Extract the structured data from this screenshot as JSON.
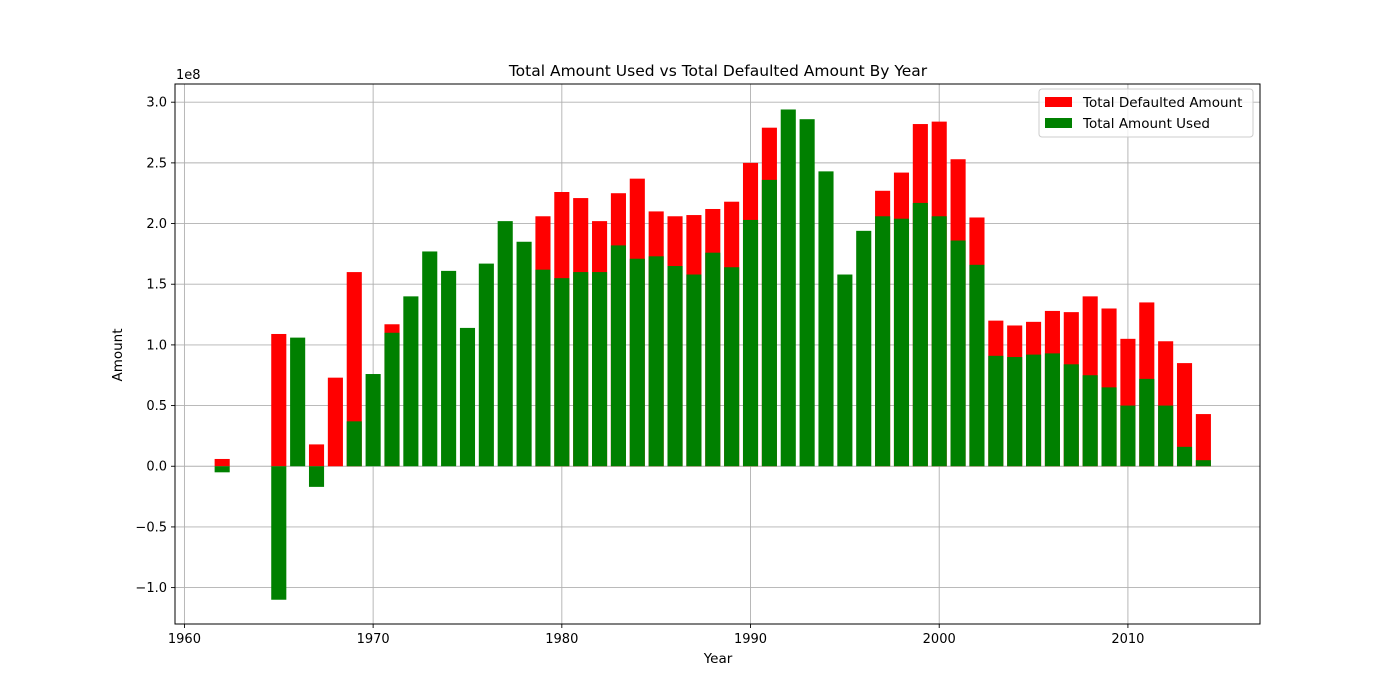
{
  "chart_data": {
    "type": "bar",
    "stacked": "overlay",
    "title": "Total Amount Used vs Total Defaulted Amount By Year",
    "xlabel": "Year",
    "ylabel": "Amount",
    "y_multiplier_label": "1e8",
    "xlim": [
      1959.5,
      2017.0
    ],
    "ylim": [
      -130000000.0,
      315000000.0
    ],
    "x_ticks": [
      1960,
      1970,
      1980,
      1990,
      2000,
      2010
    ],
    "x_tick_labels": [
      "1960",
      "1970",
      "1980",
      "1990",
      "2000",
      "2010"
    ],
    "y_ticks": [
      -100000000.0,
      -50000000.0,
      0,
      50000000.0,
      100000000.0,
      150000000.0,
      200000000.0,
      250000000.0,
      300000000.0
    ],
    "y_tick_labels": [
      "−1.0",
      "−0.5",
      "0.0",
      "0.5",
      "1.0",
      "1.5",
      "2.0",
      "2.5",
      "3.0"
    ],
    "grid": true,
    "legend_position": "top-right",
    "series": [
      {
        "name": "Total Defaulted Amount",
        "color": "#ff0000",
        "x": [
          1962,
          1965,
          1966,
          1967,
          1968,
          1969,
          1970,
          1971,
          1972,
          1973,
          1974,
          1975,
          1976,
          1977,
          1978,
          1979,
          1980,
          1981,
          1982,
          1983,
          1984,
          1985,
          1986,
          1987,
          1988,
          1989,
          1990,
          1991,
          1992,
          1993,
          1994,
          1995,
          1996,
          1997,
          1998,
          1999,
          2000,
          2001,
          2002,
          2003,
          2004,
          2005,
          2006,
          2007,
          2008,
          2009,
          2010,
          2011,
          2012,
          2013,
          2014
        ],
        "values": [
          6000000.0,
          109000000.0,
          0,
          18000000.0,
          73000000.0,
          160000000.0,
          0,
          117000000.0,
          0,
          0,
          0,
          0,
          0,
          0,
          0,
          206000000.0,
          226000000.0,
          221000000.0,
          202000000.0,
          225000000.0,
          237000000.0,
          210000000.0,
          206000000.0,
          207000000.0,
          212000000.0,
          218000000.0,
          250000000.0,
          279000000.0,
          0,
          0,
          0,
          0,
          0,
          227000000.0,
          242000000.0,
          282000000.0,
          284000000.0,
          253000000.0,
          205000000.0,
          120000000.0,
          116000000.0,
          119000000.0,
          128000000.0,
          127000000.0,
          140000000.0,
          130000000.0,
          105000000.0,
          135000000.0,
          103000000.0,
          85000000.0,
          43000000.0
        ]
      },
      {
        "name": "Total Amount Used",
        "color": "#008000",
        "x": [
          1962,
          1965,
          1966,
          1967,
          1968,
          1969,
          1970,
          1971,
          1972,
          1973,
          1974,
          1975,
          1976,
          1977,
          1978,
          1979,
          1980,
          1981,
          1982,
          1983,
          1984,
          1985,
          1986,
          1987,
          1988,
          1989,
          1990,
          1991,
          1992,
          1993,
          1994,
          1995,
          1996,
          1997,
          1998,
          1999,
          2000,
          2001,
          2002,
          2003,
          2004,
          2005,
          2006,
          2007,
          2008,
          2009,
          2010,
          2011,
          2012,
          2013,
          2014
        ],
        "values": [
          -5000000.0,
          -110000000.0,
          106000000.0,
          -17000000.0,
          0,
          37000000.0,
          76000000.0,
          110000000.0,
          140000000.0,
          177000000.0,
          161000000.0,
          114000000.0,
          167000000.0,
          202000000.0,
          185000000.0,
          162000000.0,
          155000000.0,
          160000000.0,
          160000000.0,
          182000000.0,
          171000000.0,
          173000000.0,
          165000000.0,
          158000000.0,
          176000000.0,
          164000000.0,
          203000000.0,
          236000000.0,
          294000000.0,
          286000000.0,
          243000000.0,
          158000000.0,
          194000000.0,
          206000000.0,
          204000000.0,
          217000000.0,
          206000000.0,
          186000000.0,
          166000000.0,
          91000000.0,
          90000000.0,
          92000000.0,
          93000000.0,
          84000000.0,
          75000000.0,
          65000000.0,
          50000000.0,
          72000000.0,
          50000000.0,
          16000000.0,
          5000000.0
        ]
      }
    ]
  }
}
